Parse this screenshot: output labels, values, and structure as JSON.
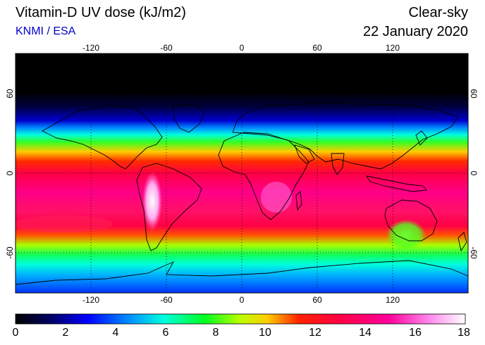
{
  "header": {
    "title": "Vitamin-D UV dose (kJ/m2)",
    "source": "KNMI / ESA",
    "sky_condition": "Clear-sky",
    "date": "22 January 2020"
  },
  "map": {
    "projection": "equirectangular",
    "lon_range": [
      -180,
      180
    ],
    "lat_range": [
      -90,
      90
    ],
    "lon_ticks": [
      "-120",
      "-60",
      "0",
      "60",
      "120"
    ],
    "lat_ticks": [
      "60",
      "0",
      "-60"
    ],
    "gridlines": "dotted",
    "coastlines": true
  },
  "colorbar": {
    "min": 0,
    "max": 18,
    "tick_labels": [
      "0",
      "2",
      "4",
      "6",
      "8",
      "10",
      "12",
      "14",
      "16",
      "18"
    ],
    "colors": [
      "#000000",
      "#000066",
      "#0000ff",
      "#00aaff",
      "#00ffcc",
      "#00ff33",
      "#aaff00",
      "#ffcc00",
      "#ff3300",
      "#ff0033",
      "#ff0099",
      "#ff88ee",
      "#ffffff"
    ]
  }
}
